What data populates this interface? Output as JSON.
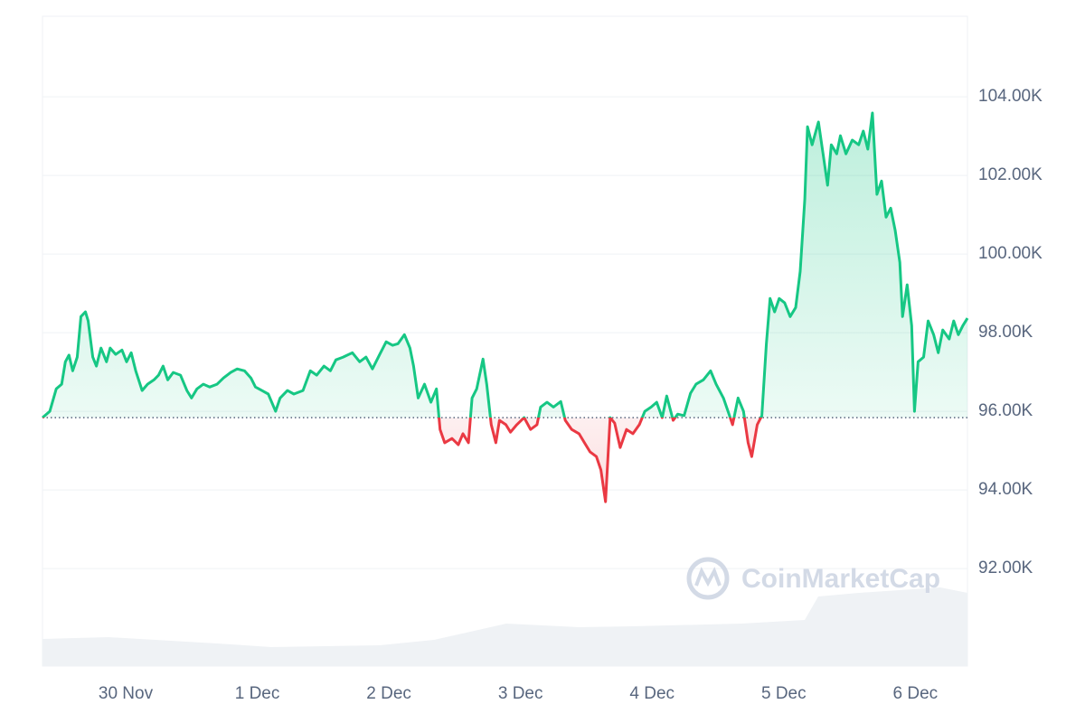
{
  "chart_data": {
    "type": "line",
    "watermark": "CoinMarketCap",
    "baseline": 95840,
    "color_up": "#16c784",
    "color_down": "#ea3943",
    "grid": true,
    "x": [
      "29 Nov 08:50",
      "29 Nov 10:10",
      "29 Nov 11:20",
      "29 Nov 12:20",
      "29 Nov 13:00",
      "29 Nov 13:40",
      "29 Nov 14:20",
      "29 Nov 15:10",
      "29 Nov 15:50",
      "29 Nov 16:40",
      "29 Nov 17:10",
      "29 Nov 18:00",
      "29 Nov 18:40",
      "29 Nov 19:30",
      "29 Nov 20:30",
      "29 Nov 21:10",
      "29 Nov 22:10",
      "29 Nov 23:20",
      "30 Nov 00:10",
      "30 Nov 01:00",
      "30 Nov 01:50",
      "30 Nov 03:00",
      "30 Nov 04:00",
      "30 Nov 05:10",
      "30 Nov 06:00",
      "30 Nov 06:50",
      "30 Nov 07:40",
      "30 Nov 08:40",
      "30 Nov 10:00",
      "30 Nov 11:10",
      "30 Nov 12:00",
      "30 Nov 13:00",
      "30 Nov 14:10",
      "30 Nov 15:20",
      "30 Nov 16:40",
      "30 Nov 17:50",
      "30 Nov 19:10",
      "30 Nov 20:20",
      "30 Nov 21:40",
      "30 Nov 22:50",
      "30 Nov 23:40",
      "1 Dec 00:50",
      "1 Dec 02:00",
      "1 Dec 03:20",
      "1 Dec 04:10",
      "1 Dec 05:30",
      "1 Dec 06:40",
      "1 Dec 08:20",
      "1 Dec 09:40",
      "1 Dec 10:50",
      "1 Dec 12:10",
      "1 Dec 13:20",
      "1 Dec 14:20",
      "1 Dec 15:40",
      "1 Dec 17:20",
      "1 Dec 18:40",
      "1 Dec 19:50",
      "1 Dec 21:00",
      "1 Dec 22:20",
      "1 Dec 23:30",
      "2 Dec 00:40",
      "2 Dec 01:40",
      "2 Dec 02:50",
      "2 Dec 03:50",
      "2 Dec 04:30",
      "2 Dec 05:20",
      "2 Dec 06:30",
      "2 Dec 07:40",
      "2 Dec 08:40",
      "2 Dec 09:20",
      "2 Dec 10:10",
      "2 Dec 11:30",
      "2 Dec 12:40",
      "2 Dec 13:30",
      "2 Dec 14:30",
      "2 Dec 15:10",
      "2 Dec 16:00",
      "2 Dec 17:10",
      "2 Dec 17:50",
      "2 Dec 18:40",
      "2 Dec 19:30",
      "2 Dec 20:10",
      "2 Dec 21:20",
      "2 Dec 22:10",
      "2 Dec 23:20",
      "3 Dec 00:40",
      "3 Dec 01:50",
      "3 Dec 03:00",
      "3 Dec 03:40",
      "3 Dec 04:50",
      "3 Dec 06:00",
      "3 Dec 07:20",
      "3 Dec 08:10",
      "3 Dec 09:20",
      "3 Dec 10:40",
      "3 Dec 11:40",
      "3 Dec 12:40",
      "3 Dec 13:50",
      "3 Dec 14:40",
      "3 Dec 15:30",
      "3 Dec 16:20",
      "3 Dec 17:10",
      "3 Dec 18:10",
      "3 Dec 19:20",
      "3 Dec 20:30",
      "3 Dec 21:40",
      "3 Dec 22:40",
      "3 Dec 23:50",
      "4 Dec 00:50",
      "4 Dec 01:50",
      "4 Dec 02:40",
      "4 Dec 03:50",
      "4 Dec 04:40",
      "4 Dec 05:50",
      "4 Dec 07:00",
      "4 Dec 08:00",
      "4 Dec 09:20",
      "4 Dec 10:40",
      "4 Dec 11:40",
      "4 Dec 13:00",
      "4 Dec 13:50",
      "4 Dec 14:40",
      "4 Dec 15:40",
      "4 Dec 16:40",
      "4 Dec 17:30",
      "4 Dec 18:10",
      "4 Dec 19:10",
      "4 Dec 20:00",
      "4 Dec 20:50",
      "4 Dec 21:30",
      "4 Dec 22:20",
      "4 Dec 23:10",
      "5 Dec 00:10",
      "5 Dec 01:10",
      "5 Dec 02:10",
      "5 Dec 03:00",
      "5 Dec 03:50",
      "5 Dec 04:20",
      "5 Dec 05:10",
      "5 Dec 06:20",
      "5 Dec 07:10",
      "5 Dec 08:00",
      "5 Dec 08:40",
      "5 Dec 09:40",
      "5 Dec 10:20",
      "5 Dec 11:20",
      "5 Dec 12:30",
      "5 Dec 13:40",
      "5 Dec 14:30",
      "5 Dec 15:20",
      "5 Dec 16:10",
      "5 Dec 17:00",
      "5 Dec 17:50",
      "5 Dec 18:40",
      "5 Dec 19:30",
      "5 Dec 20:20",
      "5 Dec 21:10",
      "5 Dec 21:40",
      "5 Dec 22:30",
      "5 Dec 23:20",
      "5 Dec 23:50",
      "6 Dec 00:30",
      "6 Dec 01:30",
      "6 Dec 02:20",
      "6 Dec 03:20",
      "6 Dec 04:10",
      "6 Dec 05:00",
      "6 Dec 06:10",
      "6 Dec 07:00",
      "6 Dec 07:50",
      "6 Dec 08:40",
      "6 Dec 09:30"
    ],
    "values": [
      95840,
      96000,
      96570,
      96690,
      97260,
      97430,
      97030,
      97380,
      98410,
      98530,
      98300,
      97380,
      97150,
      97610,
      97260,
      97610,
      97450,
      97560,
      97260,
      97490,
      97030,
      96530,
      96690,
      96800,
      96920,
      97150,
      96800,
      96990,
      96920,
      96530,
      96340,
      96570,
      96690,
      96620,
      96690,
      96850,
      96990,
      97080,
      97030,
      96850,
      96620,
      96530,
      96440,
      96000,
      96340,
      96530,
      96440,
      96530,
      97030,
      96920,
      97150,
      97030,
      97310,
      97380,
      97490,
      97260,
      97380,
      97080,
      97450,
      97770,
      97680,
      97720,
      97950,
      97610,
      97150,
      96340,
      96690,
      96230,
      96570,
      95540,
      95200,
      95310,
      95150,
      95430,
      95200,
      96340,
      96570,
      97330,
      96690,
      95660,
      95200,
      95770,
      95660,
      95470,
      95660,
      95840,
      95540,
      95660,
      96110,
      96230,
      96110,
      96250,
      95770,
      95540,
      95430,
      95200,
      94970,
      94850,
      94510,
      93700,
      95840,
      95700,
      95080,
      95540,
      95430,
      95660,
      96000,
      96110,
      96230,
      95840,
      96390,
      95770,
      95930,
      95890,
      96460,
      96690,
      96800,
      97030,
      96690,
      96340,
      96000,
      95660,
      96340,
      96000,
      95200,
      94850,
      95660,
      95890,
      97720,
      98870,
      98530,
      98870,
      98760,
      98410,
      98640,
      99560,
      101400,
      103240,
      102780,
      103360,
      102550,
      101750,
      102780,
      102550,
      103010,
      102550,
      102900,
      102780,
      103130,
      102670,
      103590,
      101520,
      101860,
      100940,
      101170,
      100600,
      99790,
      98410,
      99220,
      98180,
      96000,
      97260,
      97380,
      98300,
      97950,
      97490,
      98070,
      97840,
      98300,
      97950,
      98180,
      98370
    ],
    "xlim": [
      "29 Nov 08:50",
      "6 Dec 09:30"
    ],
    "xticks": [
      {
        "value": "30 Nov 00:00",
        "label": "30 Nov"
      },
      {
        "value": "1 Dec 00:00",
        "label": "1 Dec"
      },
      {
        "value": "2 Dec 00:00",
        "label": "2 Dec"
      },
      {
        "value": "3 Dec 00:00",
        "label": "3 Dec"
      },
      {
        "value": "4 Dec 00:00",
        "label": "4 Dec"
      },
      {
        "value": "5 Dec 00:00",
        "label": "5 Dec"
      },
      {
        "value": "6 Dec 00:00",
        "label": "6 Dec"
      }
    ],
    "ylim": [
      89520,
      106050
    ],
    "yticks": [
      {
        "value": 92000,
        "label": "92.00K"
      },
      {
        "value": 94000,
        "label": "94.00K"
      },
      {
        "value": 96000,
        "label": "96.00K"
      },
      {
        "value": 98000,
        "label": "98.00K"
      },
      {
        "value": 100000,
        "label": "100.00K"
      },
      {
        "value": 102000,
        "label": "102.00K"
      },
      {
        "value": 104000,
        "label": "104.00K"
      }
    ]
  }
}
